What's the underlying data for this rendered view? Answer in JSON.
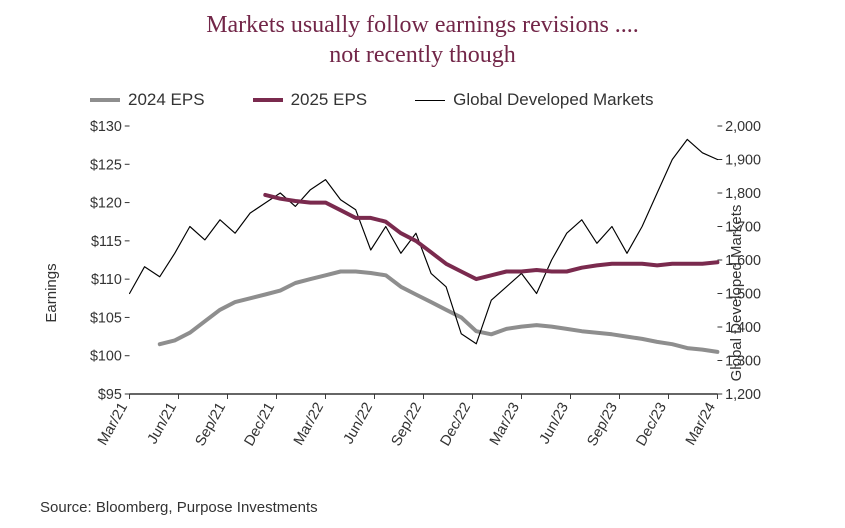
{
  "title_line1": "Markets usually follow earnings revisions ....",
  "title_line2": "not recently though",
  "title_color": "#722648",
  "title_fontsize": 24,
  "title_fontfamily": "Georgia, 'Times New Roman', serif",
  "legend": {
    "items": [
      {
        "label": "2024 EPS",
        "color": "#8e8e8e",
        "width": 4
      },
      {
        "label": "2025 EPS",
        "color": "#7a2a4e",
        "width": 4
      },
      {
        "label": "Global Developed Markets",
        "color": "#000000",
        "width": 1.2
      }
    ],
    "fontsize": 17,
    "color": "#333333"
  },
  "chart": {
    "background_color": "#ffffff",
    "plot_border_color": "#333333",
    "plot_border_width": 1.5,
    "x": {
      "categories": [
        "Mar/21",
        "Jun/21",
        "Sep/21",
        "Dec/21",
        "Mar/22",
        "Jun/22",
        "Sep/22",
        "Dec/22",
        "Mar/23",
        "Jun/23",
        "Sep/23",
        "Dec/23",
        "Mar/24"
      ],
      "label_rotation": -60,
      "tick_fontsize": 15,
      "tick_color": "#333333"
    },
    "y_left": {
      "label": "Earnings",
      "min": 95,
      "max": 130,
      "step": 5,
      "prefix": "$",
      "tick_fontsize": 15,
      "tick_color": "#333333",
      "label_fontsize": 15
    },
    "y_right": {
      "label": "Global Developed  Markets",
      "min": 1200,
      "max": 2000,
      "step": 100,
      "tick_fontsize": 15,
      "tick_color": "#333333",
      "label_fontsize": 15,
      "thousands_sep": ","
    },
    "n_points": 40,
    "series": {
      "eps2024": {
        "axis": "left",
        "color": "#8e8e8e",
        "line_width": 4,
        "start_index": 2,
        "values": [
          101.5,
          102,
          103,
          104.5,
          106,
          107,
          107.5,
          108,
          108.5,
          109.5,
          110,
          110.5,
          111,
          111,
          110.8,
          110.5,
          109,
          108,
          107,
          106,
          105,
          103.2,
          102.8,
          103.5,
          103.8,
          104,
          103.8,
          103.5,
          103.2,
          103,
          102.8,
          102.5,
          102.2,
          101.8,
          101.5,
          101,
          100.8,
          100.5
        ]
      },
      "eps2025": {
        "axis": "left",
        "color": "#7a2a4e",
        "line_width": 4,
        "start_index": 9,
        "values": [
          121,
          120.5,
          120.2,
          120,
          120,
          119,
          118,
          118,
          117.5,
          116,
          115,
          113.5,
          112,
          111,
          110,
          110.5,
          111,
          111,
          111.2,
          111,
          111,
          111.5,
          111.8,
          112,
          112,
          112,
          111.8,
          112,
          112,
          112,
          112.2
        ]
      },
      "gdm": {
        "axis": "right",
        "color": "#000000",
        "line_width": 1.2,
        "start_index": 0,
        "values": [
          1500,
          1580,
          1550,
          1620,
          1700,
          1660,
          1720,
          1680,
          1740,
          1770,
          1800,
          1760,
          1810,
          1840,
          1780,
          1750,
          1630,
          1700,
          1620,
          1680,
          1560,
          1520,
          1380,
          1350,
          1480,
          1520,
          1560,
          1500,
          1600,
          1680,
          1720,
          1650,
          1700,
          1620,
          1700,
          1800,
          1900,
          1960,
          1920,
          1900
        ]
      }
    }
  },
  "source": "Source: Bloomberg, Purpose Investments",
  "source_fontsize": 15,
  "source_color": "#333333"
}
